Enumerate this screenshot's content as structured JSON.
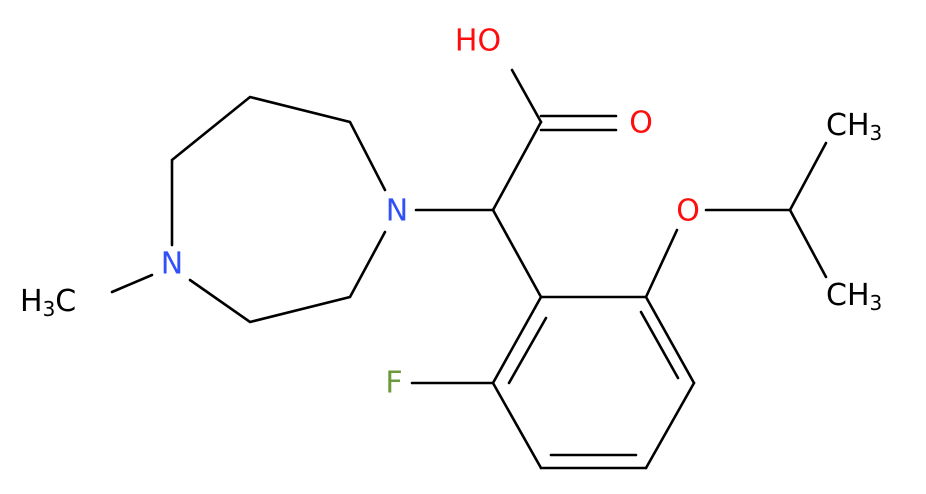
{
  "atoms": {
    "hydroxyl": "HO",
    "carbonyl_oxygen": "O",
    "ether_oxygen": "O",
    "ring_nitrogen_1": "N",
    "ring_nitrogen_4": "N",
    "fluorine": "F",
    "n_methyl": [
      "H",
      "3",
      "C"
    ],
    "methyl_top": [
      "CH",
      "3"
    ],
    "methyl_bottom": [
      "CH",
      "3"
    ]
  }
}
